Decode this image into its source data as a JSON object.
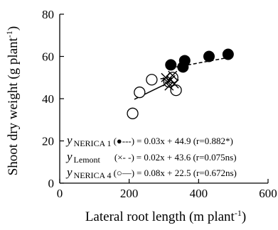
{
  "chart_data": {
    "type": "scatter",
    "xlabel": "Lateral root length",
    "xlabel_unit": "(m plant",
    "xlabel_sup": "-1",
    "xlabel_close": ")",
    "ylabel": "Shoot dry weight",
    "ylabel_unit": "(g plant",
    "ylabel_sup": "-1",
    "ylabel_close": ")",
    "xlim": [
      0,
      600
    ],
    "ylim": [
      0,
      80
    ],
    "xticks": [
      0,
      200,
      400,
      600
    ],
    "yticks": [
      0,
      20,
      40,
      60,
      80
    ],
    "series": [
      {
        "name": "NERICA 1",
        "marker": "filled-circle",
        "line": "dashed",
        "fit": {
          "slope": 0.03,
          "intercept": 44.9,
          "xrange": [
            320,
            485
          ]
        },
        "points": [
          [
            320,
            56
          ],
          [
            355,
            55
          ],
          [
            360,
            58
          ],
          [
            430,
            60
          ],
          [
            485,
            61
          ]
        ]
      },
      {
        "name": "Lemont",
        "marker": "cross",
        "line": "dash-dot",
        "fit": {
          "slope": 0.02,
          "intercept": 43.6,
          "xrange": [
            290,
            335
          ]
        },
        "points": [
          [
            305,
            50
          ],
          [
            310,
            48
          ],
          [
            315,
            46
          ],
          [
            320,
            49
          ],
          [
            325,
            51
          ],
          [
            330,
            47
          ]
        ]
      },
      {
        "name": "NERICA 4",
        "marker": "open-circle",
        "line": "solid",
        "fit": {
          "slope": 0.08,
          "intercept": 22.5,
          "xrange": [
            215,
            340
          ]
        },
        "points": [
          [
            210,
            33
          ],
          [
            230,
            43
          ],
          [
            265,
            49
          ],
          [
            315,
            48
          ],
          [
            325,
            50
          ],
          [
            335,
            44
          ]
        ]
      }
    ],
    "legend": [
      {
        "y": "y",
        "sub": "NERICA 1",
        "sym": "(●---)",
        "eq": "= 0.03x + 44.9 (r=0.882*)"
      },
      {
        "y": "y",
        "sub": "Lemont",
        "sym": "(×- -)",
        "eq": "= 0.02x + 43.6 (r=0.075ns)"
      },
      {
        "y": "y",
        "sub": "NERICA 4",
        "sym": "(○—)",
        "eq": "= 0.08x + 22.5 (r=0.672ns)"
      }
    ]
  }
}
